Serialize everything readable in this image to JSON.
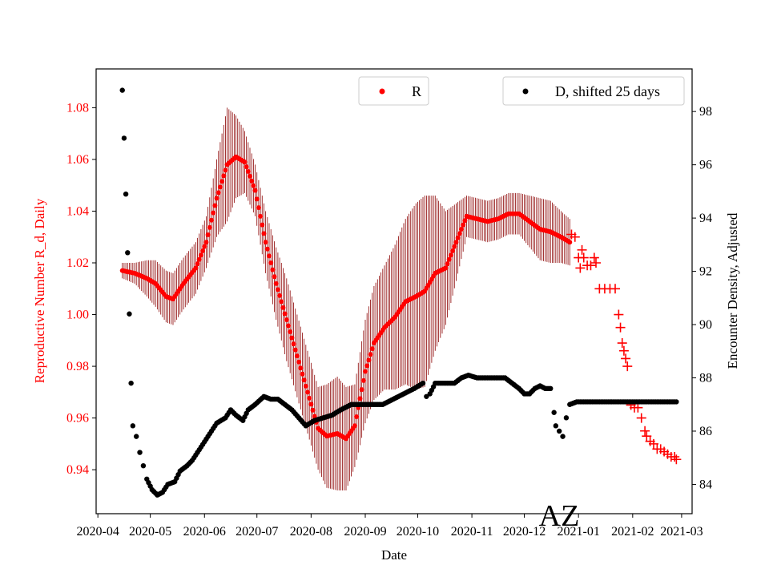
{
  "colors": {
    "r_series": "#ff0000",
    "r_error": "#8b0000",
    "d_series": "#000000",
    "left_axis_text": "#ff0000"
  },
  "chart_data": {
    "type": "scatter",
    "annotation": "AZ",
    "xlabel": "Date",
    "ylabel_left": "Reproductive Number R_d, Daily",
    "ylabel_right": "Encounter Density, Adjusted",
    "xlim": [
      "2020-03-31",
      "2021-03-07"
    ],
    "ylim_left": [
      0.923,
      1.095
    ],
    "ylim_right": [
      82.9,
      99.6
    ],
    "x_ticks": [
      "2020-04",
      "2020-05",
      "2020-06",
      "2020-07",
      "2020-08",
      "2020-09",
      "2020-10",
      "2020-11",
      "2020-12",
      "2021-01",
      "2021-02",
      "2021-03"
    ],
    "y_ticks_left": [
      "0.94",
      "0.96",
      "0.98",
      "1.00",
      "1.02",
      "1.04",
      "1.06",
      "1.08"
    ],
    "y_ticks_right": [
      "84",
      "86",
      "88",
      "90",
      "92",
      "94",
      "96",
      "98"
    ],
    "legend": {
      "r_label": "R",
      "d_label": "D, shifted 25 days",
      "r_position": "upper-center",
      "d_position": "upper-right"
    },
    "series": [
      {
        "name": "R",
        "axis": "left",
        "marker": "dot",
        "error_bars": true,
        "points": [
          [
            "2020-04-15",
            1.017,
            0.003
          ],
          [
            "2020-04-22",
            1.016,
            0.004
          ],
          [
            "2020-04-29",
            1.014,
            0.007
          ],
          [
            "2020-05-04",
            1.012,
            0.009
          ],
          [
            "2020-05-10",
            1.007,
            0.01
          ],
          [
            "2020-05-14",
            1.006,
            0.01
          ],
          [
            "2020-05-20",
            1.012,
            0.01
          ],
          [
            "2020-05-27",
            1.018,
            0.01
          ],
          [
            "2020-06-02",
            1.028,
            0.01
          ],
          [
            "2020-06-08",
            1.045,
            0.015
          ],
          [
            "2020-06-14",
            1.058,
            0.022
          ],
          [
            "2020-06-19",
            1.061,
            0.016
          ],
          [
            "2020-06-24",
            1.059,
            0.012
          ],
          [
            "2020-06-30",
            1.048,
            0.01
          ],
          [
            "2020-07-06",
            1.028,
            0.012
          ],
          [
            "2020-07-12",
            1.012,
            0.014
          ],
          [
            "2020-07-18",
            0.998,
            0.016
          ],
          [
            "2020-07-24",
            0.984,
            0.016
          ],
          [
            "2020-07-30",
            0.97,
            0.016
          ],
          [
            "2020-08-05",
            0.956,
            0.016
          ],
          [
            "2020-08-10",
            0.953,
            0.02
          ],
          [
            "2020-08-16",
            0.954,
            0.022
          ],
          [
            "2020-08-21",
            0.952,
            0.02
          ],
          [
            "2020-08-26",
            0.957,
            0.016
          ],
          [
            "2020-09-01",
            0.978,
            0.02
          ],
          [
            "2020-09-06",
            0.989,
            0.022
          ],
          [
            "2020-09-12",
            0.995,
            0.024
          ],
          [
            "2020-09-18",
            0.999,
            0.028
          ],
          [
            "2020-09-24",
            1.005,
            0.032
          ],
          [
            "2020-09-30",
            1.007,
            0.036
          ],
          [
            "2020-10-05",
            1.009,
            0.037
          ],
          [
            "2020-10-11",
            1.016,
            0.03
          ],
          [
            "2020-10-17",
            1.018,
            0.022
          ],
          [
            "2020-10-23",
            1.028,
            0.015
          ],
          [
            "2020-10-29",
            1.038,
            0.008
          ],
          [
            "2020-11-04",
            1.037,
            0.008
          ],
          [
            "2020-11-10",
            1.036,
            0.008
          ],
          [
            "2020-11-16",
            1.037,
            0.008
          ],
          [
            "2020-11-22",
            1.039,
            0.008
          ],
          [
            "2020-11-28",
            1.039,
            0.008
          ],
          [
            "2020-12-04",
            1.036,
            0.01
          ],
          [
            "2020-12-10",
            1.033,
            0.012
          ],
          [
            "2020-12-16",
            1.032,
            0.012
          ],
          [
            "2020-12-22",
            1.03,
            0.01
          ],
          [
            "2020-12-27",
            1.028,
            0.009
          ]
        ]
      },
      {
        "name": "R",
        "axis": "left",
        "marker": "plus",
        "points": [
          [
            "2020-12-28",
            1.031
          ],
          [
            "2020-12-30",
            1.03
          ],
          [
            "2021-01-01",
            1.022
          ],
          [
            "2021-01-02",
            1.018
          ],
          [
            "2021-01-03",
            1.025
          ],
          [
            "2021-01-04",
            1.022
          ],
          [
            "2021-01-06",
            1.019
          ],
          [
            "2021-01-08",
            1.019
          ],
          [
            "2021-01-10",
            1.022
          ],
          [
            "2021-01-11",
            1.02
          ],
          [
            "2021-01-13",
            1.01
          ],
          [
            "2021-01-16",
            1.01
          ],
          [
            "2021-01-19",
            1.01
          ],
          [
            "2021-01-22",
            1.01
          ],
          [
            "2021-01-24",
            1.0
          ],
          [
            "2021-01-25",
            0.995
          ],
          [
            "2021-01-26",
            0.989
          ],
          [
            "2021-01-27",
            0.986
          ],
          [
            "2021-01-28",
            0.983
          ],
          [
            "2021-01-29",
            0.98
          ],
          [
            "2021-01-31",
            0.965
          ],
          [
            "2021-02-02",
            0.964
          ],
          [
            "2021-02-04",
            0.964
          ],
          [
            "2021-02-06",
            0.96
          ],
          [
            "2021-02-08",
            0.955
          ],
          [
            "2021-02-09",
            0.953
          ],
          [
            "2021-02-11",
            0.951
          ],
          [
            "2021-02-13",
            0.95
          ],
          [
            "2021-02-15",
            0.948
          ],
          [
            "2021-02-17",
            0.948
          ],
          [
            "2021-02-19",
            0.947
          ],
          [
            "2021-02-21",
            0.946
          ],
          [
            "2021-02-23",
            0.945
          ],
          [
            "2021-02-25",
            0.945
          ],
          [
            "2021-02-26",
            0.944
          ]
        ]
      },
      {
        "name": "D, shifted 25 days",
        "axis": "right",
        "marker": "dot",
        "points": [
          [
            "2020-04-15",
            98.8
          ],
          [
            "2020-04-16",
            97.0
          ],
          [
            "2020-04-17",
            94.9
          ],
          [
            "2020-04-18",
            92.7
          ],
          [
            "2020-04-19",
            90.4
          ],
          [
            "2020-04-20",
            87.8
          ],
          [
            "2020-04-21",
            86.2
          ],
          [
            "2020-04-23",
            85.8
          ],
          [
            "2020-04-25",
            85.2
          ],
          [
            "2020-04-27",
            84.7
          ],
          [
            "2020-04-29",
            84.2
          ],
          [
            "2020-05-02",
            83.8
          ],
          [
            "2020-05-05",
            83.6
          ],
          [
            "2020-05-08",
            83.7
          ],
          [
            "2020-05-11",
            84.0
          ],
          [
            "2020-05-15",
            84.1
          ],
          [
            "2020-05-18",
            84.5
          ],
          [
            "2020-05-22",
            84.7
          ],
          [
            "2020-05-25",
            84.9
          ],
          [
            "2020-05-29",
            85.3
          ],
          [
            "2020-06-03",
            85.8
          ],
          [
            "2020-06-08",
            86.3
          ],
          [
            "2020-06-13",
            86.5
          ],
          [
            "2020-06-16",
            86.8
          ],
          [
            "2020-06-19",
            86.6
          ],
          [
            "2020-06-23",
            86.4
          ],
          [
            "2020-06-26",
            86.8
          ],
          [
            "2020-06-30",
            87.0
          ],
          [
            "2020-07-05",
            87.3
          ],
          [
            "2020-07-09",
            87.2
          ],
          [
            "2020-07-13",
            87.2
          ],
          [
            "2020-07-17",
            87.0
          ],
          [
            "2020-07-21",
            86.8
          ],
          [
            "2020-07-25",
            86.5
          ],
          [
            "2020-07-29",
            86.2
          ],
          [
            "2020-08-03",
            86.4
          ],
          [
            "2020-08-08",
            86.5
          ],
          [
            "2020-08-13",
            86.6
          ],
          [
            "2020-08-18",
            86.8
          ],
          [
            "2020-08-24",
            87.0
          ],
          [
            "2020-08-30",
            87.0
          ],
          [
            "2020-09-05",
            87.0
          ],
          [
            "2020-09-11",
            87.0
          ],
          [
            "2020-09-17",
            87.2
          ],
          [
            "2020-09-23",
            87.4
          ],
          [
            "2020-09-29",
            87.6
          ],
          [
            "2020-10-04",
            87.8
          ],
          [
            "2020-10-06",
            87.3
          ],
          [
            "2020-10-08",
            87.4
          ],
          [
            "2020-10-11",
            87.8
          ],
          [
            "2020-10-14",
            87.8
          ],
          [
            "2020-10-18",
            87.8
          ],
          [
            "2020-10-22",
            87.8
          ],
          [
            "2020-10-26",
            88.0
          ],
          [
            "2020-10-30",
            88.1
          ],
          [
            "2020-11-04",
            88.0
          ],
          [
            "2020-11-08",
            88.0
          ],
          [
            "2020-11-12",
            88.0
          ],
          [
            "2020-11-16",
            88.0
          ],
          [
            "2020-11-20",
            88.0
          ],
          [
            "2020-11-24",
            87.8
          ],
          [
            "2020-11-28",
            87.6
          ],
          [
            "2020-12-01",
            87.4
          ],
          [
            "2020-12-04",
            87.4
          ],
          [
            "2020-12-07",
            87.6
          ],
          [
            "2020-12-10",
            87.7
          ],
          [
            "2020-12-13",
            87.6
          ],
          [
            "2020-12-16",
            87.6
          ],
          [
            "2020-12-18",
            86.7
          ],
          [
            "2020-12-19",
            86.2
          ],
          [
            "2020-12-21",
            86.0
          ],
          [
            "2020-12-23",
            85.8
          ],
          [
            "2020-12-25",
            86.5
          ],
          [
            "2020-12-27",
            87.0
          ],
          [
            "2020-12-31",
            87.1
          ],
          [
            "2021-01-06",
            87.1
          ],
          [
            "2021-01-12",
            87.1
          ],
          [
            "2021-01-18",
            87.1
          ],
          [
            "2021-01-24",
            87.1
          ],
          [
            "2021-01-30",
            87.1
          ],
          [
            "2021-02-05",
            87.1
          ],
          [
            "2021-02-11",
            87.1
          ],
          [
            "2021-02-17",
            87.1
          ],
          [
            "2021-02-23",
            87.1
          ],
          [
            "2021-02-26",
            87.1
          ]
        ]
      }
    ]
  }
}
